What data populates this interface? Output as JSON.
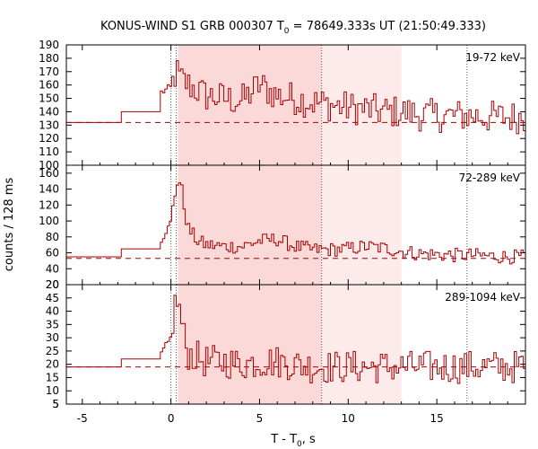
{
  "title": {
    "prefix": "KONUS-WIND S1 GRB 000307 T",
    "sub": "0",
    "suffix": " = 78649.333s UT (21:50:49.333)"
  },
  "xlabel": {
    "prefix": "T - T",
    "sub": "0",
    "suffix": ", s"
  },
  "ylabel": "counts / 128 ms",
  "chart_data": {
    "type": "line",
    "line_style": "step",
    "xlim": [
      -5.9,
      20
    ],
    "xticks": [
      -5,
      0,
      5,
      10,
      15
    ],
    "vlines": [
      0.0,
      0.3,
      8.5,
      16.7
    ],
    "shaded_regions": [
      {
        "x": [
          0.4,
          8.5
        ],
        "color": "#fbd9d9"
      },
      {
        "x": [
          8.5,
          13.0
        ],
        "color": "#fdeaea"
      }
    ],
    "series_color": "#aa0000",
    "panels": [
      {
        "label": "19-72 keV",
        "ylim": [
          100,
          190
        ],
        "yticks": [
          110,
          120,
          130,
          140,
          150,
          160,
          170,
          180,
          190
        ],
        "background": 132,
        "x": [
          -5.9,
          -2.8,
          0.0,
          0.3,
          0.5,
          1.0,
          2.0,
          3.0,
          4.0,
          5.0,
          6.0,
          7.0,
          8.0,
          9.0,
          10.0,
          11.0,
          12.0,
          13.0,
          14.0,
          15.0,
          16.0,
          17.0,
          18.0,
          19.0,
          20.0
        ],
        "y": [
          132,
          140,
          158,
          170,
          165,
          160,
          152,
          150,
          148,
          160,
          152,
          150,
          147,
          145,
          143,
          142,
          140,
          140,
          138,
          137,
          137,
          137,
          136,
          136,
          136
        ]
      },
      {
        "label": "72-289 keV",
        "ylim": [
          20,
          170
        ],
        "yticks": [
          20,
          40,
          60,
          80,
          100,
          120,
          140,
          160
        ],
        "background": 53,
        "x": [
          -5.9,
          -2.8,
          -0.5,
          0.0,
          0.2,
          0.4,
          0.6,
          0.8,
          1.0,
          1.5,
          2.0,
          3.0,
          4.0,
          5.0,
          6.0,
          7.0,
          8.0,
          9.0,
          10.0,
          11.0,
          12.0,
          13.0,
          14.0,
          15.0,
          16.0,
          17.0,
          18.0,
          19.0,
          20.0
        ],
        "y": [
          55,
          65,
          75,
          100,
          130,
          155,
          140,
          110,
          90,
          75,
          70,
          68,
          68,
          75,
          77,
          68,
          64,
          64,
          65,
          68,
          66,
          62,
          59,
          58,
          57,
          57,
          56,
          55,
          55
        ]
      },
      {
        "label": "289-1094 keV",
        "ylim": [
          5,
          50
        ],
        "yticks": [
          5,
          10,
          15,
          20,
          25,
          30,
          35,
          40,
          45
        ],
        "background": 19,
        "x": [
          -5.9,
          -2.8,
          -0.5,
          0.0,
          0.2,
          0.4,
          0.6,
          0.8,
          1.0,
          2.0,
          3.0,
          4.0,
          5.0,
          6.0,
          7.0,
          8.0,
          9.0,
          10.0,
          11.0,
          12.0,
          13.0,
          14.0,
          15.0,
          16.0,
          17.0,
          18.0,
          19.0,
          20.0
        ],
        "y": [
          19,
          22,
          24,
          30,
          42,
          44,
          36,
          28,
          24,
          21,
          21,
          20,
          21,
          21,
          20,
          19,
          19,
          19,
          19,
          19,
          19,
          19,
          19,
          19,
          19,
          19,
          19,
          19
        ]
      }
    ]
  }
}
